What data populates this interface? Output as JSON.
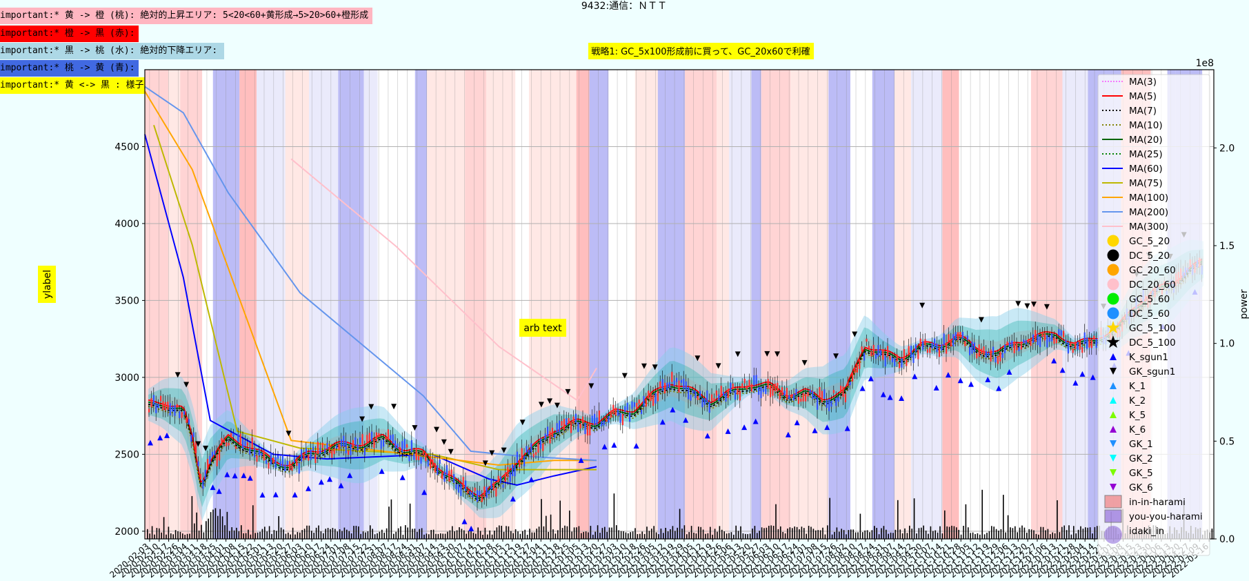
{
  "title": "9432:通信：ＮＴＴ",
  "annotations": [
    {
      "text": "important:* 黄 -> 橙 (桃): 絶対的上昇エリア: 5<20<60+黄形成→5>20>60+橙形成",
      "bg": "#ffb6c1"
    },
    {
      "text": "important:* 橙 -> 黒 (赤):",
      "bg": "#ff0000"
    },
    {
      "text": "important:* 黒 -> 桃 (水): 絶対的下降エリア:",
      "bg": "#add8e6"
    },
    {
      "text": "important:* 桃 -> 黄 (青):",
      "bg": "#4169e1"
    },
    {
      "text": "important:* 黄 <-> 黒 : 様子見:",
      "bg": "#ffff00"
    }
  ],
  "strategy_label": "戦略1: GC_5x100形成前に買って、GC_20x60で利確",
  "arb_text": "arb text",
  "ylabel": "ylabel",
  "y2label": "power",
  "y2_exponent": "1e8",
  "x_date_labels": [
    "2020-02-03",
    "2020-02-10",
    "2020-02-17",
    "2020-02-26",
    "2020-03-04",
    "2020-03-11",
    "2020-03-18",
    "2020-03-25",
    "2020-04-01",
    "2020-04-08",
    "2020-04-15",
    "2020-04-22",
    "2020-05-01",
    "2020-05-13",
    "2020-05-20",
    "2020-05-27",
    "2020-06-03",
    "2020-06-10",
    "2020-06-17",
    "2020-06-24",
    "2020-07-01",
    "2020-07-08",
    "2020-07-15",
    "2020-07-22",
    "2020-07-31",
    "2020-08-07",
    "2020-08-17",
    "2020-08-24",
    "2020-08-31",
    "2020-09-07",
    "2020-09-14",
    "2020-09-23",
    "2020-09-30",
    "2020-10-07",
    "2020-10-14",
    "2020-10-21",
    "2020-10-28",
    "2020-11-05",
    "2020-11-12",
    "2020-11-19",
    "2020-11-27",
    "2020-12-04",
    "2020-12-11",
    "2020-12-18",
    "2020-12-25",
    "2021-01-05",
    "2021-01-13",
    "2021-01-20",
    "2021-01-27",
    "2021-02-03",
    "2021-02-10",
    "2021-02-18",
    "2021-02-26",
    "2021-03-05",
    "2021-03-12",
    "2021-03-19",
    "2021-03-29",
    "2021-04-05",
    "2021-04-12",
    "2021-04-19",
    "2021-04-26",
    "2021-05-06",
    "2021-05-13",
    "2021-05-20",
    "2021-05-27",
    "2021-06-03",
    "2021-06-10",
    "2021-06-17",
    "2021-06-24",
    "2021-07-01",
    "2021-07-08",
    "2021-07-15",
    "2021-07-26",
    "2021-08-02",
    "2021-08-10",
    "2021-08-17",
    "2021-08-24",
    "2021-08-31",
    "2021-09-07",
    "2021-09-14",
    "2021-09-22",
    "2021-09-30",
    "2021-10-07",
    "2021-10-14",
    "2021-10-21",
    "2021-10-28",
    "2021-11-05",
    "2021-11-12",
    "2021-11-19",
    "2021-11-29",
    "2021-12-06",
    "2021-12-13",
    "2021-12-20",
    "2021-12-27",
    "2022-01-06",
    "2022-01-13",
    "2022-01-21",
    "2022-01-28",
    "2022-02-04",
    "2022-02-14",
    "2022-02-21",
    "2022-03-01",
    "2022-03-08",
    "2022-03-15",
    "2022-03-23",
    "2022-03-30",
    "2022-04-06",
    "2022-04-13",
    "2022-04-20",
    "2022-04-27",
    "2022-05-09",
    "2022-05-16"
  ],
  "legend": [
    {
      "label": "MA(3)",
      "kind": "line",
      "color": "#ff00ff",
      "dash": "2,2",
      "width": 1
    },
    {
      "label": "MA(5)",
      "kind": "line",
      "color": "#ff0000",
      "dash": "",
      "width": 2
    },
    {
      "label": "MA(7)",
      "kind": "line",
      "color": "#000000",
      "dash": "2,3",
      "width": 2
    },
    {
      "label": "MA(10)",
      "kind": "line",
      "color": "#808000",
      "dash": "2,3",
      "width": 2
    },
    {
      "label": "MA(20)",
      "kind": "line",
      "color": "#006400",
      "dash": "",
      "width": 2
    },
    {
      "label": "MA(25)",
      "kind": "line",
      "color": "#008000",
      "dash": "2,3",
      "width": 2
    },
    {
      "label": "MA(60)",
      "kind": "line",
      "color": "#0000ff",
      "dash": "",
      "width": 2
    },
    {
      "label": "MA(75)",
      "kind": "line",
      "color": "#bdb800",
      "dash": "",
      "width": 2
    },
    {
      "label": "MA(100)",
      "kind": "line",
      "color": "#ffa500",
      "dash": "",
      "width": 2
    },
    {
      "label": "MA(200)",
      "kind": "line",
      "color": "#6495ed",
      "dash": "",
      "width": 2
    },
    {
      "label": "MA(300)",
      "kind": "line",
      "color": "#ffc0cb",
      "dash": "",
      "width": 2
    },
    {
      "label": "GC_5_20",
      "kind": "circle",
      "color": "#ffd700"
    },
    {
      "label": "DC_5_20",
      "kind": "circle",
      "color": "#000000"
    },
    {
      "label": "GC_20_60",
      "kind": "circle",
      "color": "#ffa500"
    },
    {
      "label": "DC_20_60",
      "kind": "circle",
      "color": "#ffc0cb"
    },
    {
      "label": "GC_5_60",
      "kind": "circle",
      "color": "#00ee00"
    },
    {
      "label": "DC_5_60",
      "kind": "circle",
      "color": "#1e90ff"
    },
    {
      "label": "GC_5_100",
      "kind": "star",
      "color": "#ffd700"
    },
    {
      "label": "DC_5_100",
      "kind": "star",
      "color": "#000000"
    },
    {
      "label": "K_sgun1",
      "kind": "tri-up",
      "color": "#0000ff"
    },
    {
      "label": "GK_sgun1",
      "kind": "tri-down",
      "color": "#000000"
    },
    {
      "label": "K_1",
      "kind": "tri-up",
      "color": "#1e90ff"
    },
    {
      "label": "K_2",
      "kind": "tri-up",
      "color": "#00ffff"
    },
    {
      "label": "K_5",
      "kind": "tri-up",
      "color": "#7cfc00"
    },
    {
      "label": "K_6",
      "kind": "tri-up",
      "color": "#9400d3"
    },
    {
      "label": "GK_1",
      "kind": "tri-down",
      "color": "#1e90ff"
    },
    {
      "label": "GK_2",
      "kind": "tri-down",
      "color": "#00ffff"
    },
    {
      "label": "GK_5",
      "kind": "tri-down",
      "color": "#7cfc00"
    },
    {
      "label": "GK_6",
      "kind": "tri-down",
      "color": "#9400d3"
    },
    {
      "label": "in-in-harami",
      "kind": "rect",
      "color": "#f08080"
    },
    {
      "label": "you-you-harami",
      "kind": "rect",
      "color": "#9370db"
    },
    {
      "label": "idaki_in",
      "kind": "bigcircle",
      "color": "#9370db"
    }
  ],
  "chart_data": {
    "type": "line",
    "title": "9432:通信：ＮＴＴ",
    "ylabel": "ylabel",
    "y2label": "power",
    "ylim": [
      1950,
      5000
    ],
    "y2lim": [
      0,
      2.4
    ],
    "y_ticks": [
      2000,
      2500,
      3000,
      3500,
      4000,
      4500
    ],
    "y2_ticks": [
      "0.0",
      "0.5",
      "1.0",
      "1.5",
      "2.0"
    ],
    "grid": true,
    "legend_position": "right",
    "x_start": "2020-02-03",
    "x_end": "2022-05-16",
    "price": [
      [
        "2020-02-03",
        2820
      ],
      [
        "2020-02-17",
        2830
      ],
      [
        "2020-03-04",
        2780
      ],
      [
        "2020-03-11",
        2600
      ],
      [
        "2020-03-18",
        2300
      ],
      [
        "2020-03-25",
        2450
      ],
      [
        "2020-04-08",
        2600
      ],
      [
        "2020-04-22",
        2550
      ],
      [
        "2020-05-13",
        2450
      ],
      [
        "2020-05-27",
        2420
      ],
      [
        "2020-06-10",
        2500
      ],
      [
        "2020-07-01",
        2550
      ],
      [
        "2020-07-22",
        2560
      ],
      [
        "2020-08-07",
        2600
      ],
      [
        "2020-08-24",
        2520
      ],
      [
        "2020-09-07",
        2500
      ],
      [
        "2020-09-23",
        2380
      ],
      [
        "2020-10-07",
        2280
      ],
      [
        "2020-10-21",
        2230
      ],
      [
        "2020-11-05",
        2300
      ],
      [
        "2020-11-19",
        2450
      ],
      [
        "2020-12-04",
        2550
      ],
      [
        "2020-12-18",
        2650
      ],
      [
        "2021-01-05",
        2700
      ],
      [
        "2021-01-20",
        2700
      ],
      [
        "2021-02-03",
        2760
      ],
      [
        "2021-02-18",
        2780
      ],
      [
        "2021-03-05",
        2880
      ],
      [
        "2021-03-19",
        2960
      ],
      [
        "2021-04-05",
        2900
      ],
      [
        "2021-04-19",
        2840
      ],
      [
        "2021-05-06",
        2900
      ],
      [
        "2021-05-20",
        2950
      ],
      [
        "2021-06-03",
        2940
      ],
      [
        "2021-06-17",
        2880
      ],
      [
        "2021-07-01",
        2900
      ],
      [
        "2021-07-15",
        2850
      ],
      [
        "2021-08-02",
        2900
      ],
      [
        "2021-08-17",
        3200
      ],
      [
        "2021-08-31",
        3150
      ],
      [
        "2021-09-14",
        3120
      ],
      [
        "2021-09-30",
        3200
      ],
      [
        "2021-10-14",
        3200
      ],
      [
        "2021-10-28",
        3260
      ],
      [
        "2021-11-12",
        3180
      ],
      [
        "2021-11-29",
        3150
      ],
      [
        "2021-12-13",
        3220
      ],
      [
        "2021-12-27",
        3250
      ],
      [
        "2022-01-13",
        3280
      ],
      [
        "2022-01-28",
        3200
      ],
      [
        "2022-02-14",
        3250
      ],
      [
        "2022-03-01",
        3300
      ],
      [
        "2022-03-15",
        3450
      ],
      [
        "2022-03-30",
        3550
      ],
      [
        "2022-04-13",
        3600
      ],
      [
        "2022-04-27",
        3700
      ],
      [
        "2022-05-16",
        3770
      ]
    ],
    "series": [
      {
        "name": "MA(60)",
        "values": [
          [
            "2020-02-03",
            4580
          ],
          [
            "2020-03-04",
            3650
          ],
          [
            "2020-03-25",
            2720
          ],
          [
            "2020-05-13",
            2500
          ],
          [
            "2020-06-24",
            2470
          ],
          [
            "2020-09-14",
            2500
          ],
          [
            "2020-10-28",
            2340
          ],
          [
            "2020-11-19",
            2300
          ],
          [
            "2020-12-18",
            2360
          ],
          [
            "2021-01-20",
            2420
          ]
        ]
      },
      {
        "name": "MA(75)",
        "values": [
          [
            "2020-02-10",
            4640
          ],
          [
            "2020-03-11",
            3860
          ],
          [
            "2020-04-15",
            2650
          ],
          [
            "2020-06-03",
            2540
          ],
          [
            "2020-09-14",
            2500
          ],
          [
            "2020-11-05",
            2400
          ],
          [
            "2020-12-18",
            2400
          ],
          [
            "2021-01-20",
            2400
          ]
        ]
      },
      {
        "name": "MA(100)",
        "values": [
          [
            "2020-02-03",
            4860
          ],
          [
            "2020-03-11",
            4350
          ],
          [
            "2020-05-27",
            2590
          ],
          [
            "2020-08-07",
            2520
          ],
          [
            "2020-11-05",
            2430
          ],
          [
            "2020-12-18",
            2460
          ],
          [
            "2021-01-20",
            2460
          ]
        ]
      },
      {
        "name": "MA(200)",
        "values": [
          [
            "2020-02-03",
            4890
          ],
          [
            "2020-03-04",
            4720
          ],
          [
            "2020-04-08",
            4200
          ],
          [
            "2020-06-03",
            3550
          ],
          [
            "2020-09-07",
            2880
          ],
          [
            "2020-10-14",
            2520
          ],
          [
            "2020-11-19",
            2490
          ],
          [
            "2021-01-20",
            2460
          ]
        ]
      },
      {
        "name": "MA(300)",
        "values": [
          [
            "2020-05-27",
            4420
          ],
          [
            "2020-08-17",
            3850
          ],
          [
            "2020-11-05",
            3200
          ],
          [
            "2021-01-05",
            2850
          ],
          [
            "2021-01-20",
            3060
          ]
        ]
      }
    ]
  }
}
